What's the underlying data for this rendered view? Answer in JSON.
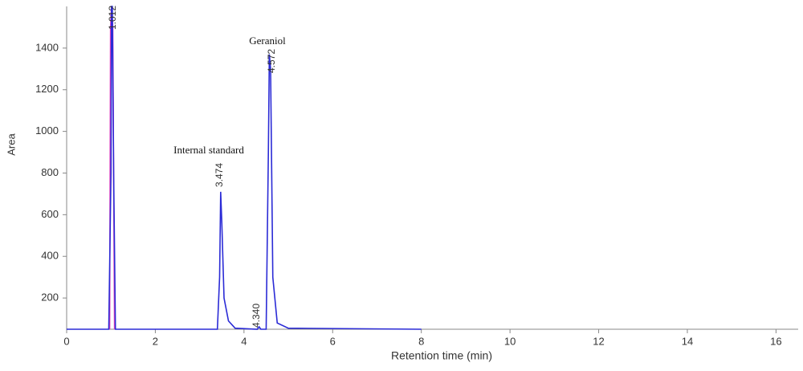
{
  "chart_data": {
    "type": "line",
    "x_label": "Retention time (min)",
    "y_label": "Area",
    "xlim": [
      0,
      16.5
    ],
    "xticks": [
      0,
      2,
      4,
      6,
      8,
      10,
      12,
      14,
      16
    ],
    "ylim": [
      50,
      1600
    ],
    "yticks": [
      200,
      400,
      600,
      800,
      1000,
      1200,
      1400
    ],
    "series": [
      {
        "name": null,
        "color": "#2b2bd6",
        "x": [
          0,
          0.95,
          1.0,
          1.012,
          1.03,
          1.06,
          1.1,
          3.4,
          3.45,
          3.474,
          3.5,
          3.55,
          3.65,
          3.8,
          4.3,
          4.34,
          4.38,
          4.5,
          4.55,
          4.572,
          4.6,
          4.65,
          4.75,
          5.0,
          8.0
        ],
        "values": [
          50,
          50,
          800,
          1600,
          1600,
          800,
          50,
          50,
          300,
          710,
          560,
          200,
          90,
          55,
          50,
          62,
          50,
          50,
          900,
          1370,
          1300,
          300,
          80,
          55,
          50
        ]
      },
      {
        "name": null,
        "color": "#e040c0",
        "x": [
          0.97,
          0.99,
          1.012,
          1.04,
          1.08
        ],
        "values": [
          50,
          1500,
          1600,
          1500,
          50
        ]
      }
    ],
    "peak_labels": [
      "1.012",
      "3.474",
      "4.340",
      "4.572"
    ],
    "annotations": [
      "Internal standard",
      "Geraniol"
    ]
  }
}
